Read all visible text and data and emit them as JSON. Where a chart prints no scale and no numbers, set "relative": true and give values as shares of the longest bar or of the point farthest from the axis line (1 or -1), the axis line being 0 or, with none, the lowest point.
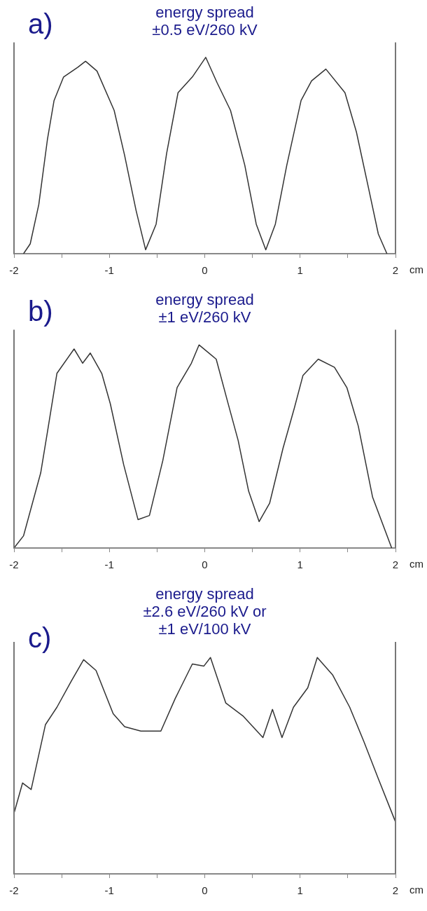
{
  "chart_data": [
    {
      "type": "line",
      "title": "energy spread\n±0.5 eV/260 kV",
      "annotations": [
        "a)"
      ],
      "xlabel": "cm",
      "relative": true,
      "legend": false,
      "grid": false,
      "marker": "none",
      "line_style": "solid",
      "xlim": [
        -2,
        2
      ],
      "xticks": [
        -2,
        {
          "value": -1.5,
          "label": null
        },
        -1,
        {
          "value": -0.5,
          "label": null
        },
        0,
        {
          "value": 0.5,
          "label": null
        },
        1,
        {
          "value": 1.5,
          "label": null
        },
        2
      ],
      "series": [
        {
          "color": "#333333",
          "x": [
            -1.9,
            -1.83,
            -1.74,
            -1.65,
            -1.58,
            -1.48,
            -1.33,
            -1.25,
            -1.13,
            -0.95,
            -0.84,
            -0.72,
            -0.62,
            -0.51,
            -0.4,
            -0.28,
            -0.13,
            0.01,
            0.13,
            0.27,
            0.42,
            0.54,
            0.64,
            0.74,
            0.86,
            1.01,
            1.12,
            1.27,
            1.47,
            1.59,
            1.71,
            1.82,
            1.91
          ],
          "values": [
            0,
            0.05,
            0.25,
            0.58,
            0.78,
            0.9,
            0.95,
            0.98,
            0.93,
            0.73,
            0.5,
            0.22,
            0.02,
            0.15,
            0.51,
            0.82,
            0.9,
            1,
            0.87,
            0.73,
            0.45,
            0.15,
            0.02,
            0.15,
            0.45,
            0.78,
            0.88,
            0.94,
            0.82,
            0.62,
            0.35,
            0.1,
            0
          ]
        }
      ]
    },
    {
      "type": "line",
      "title": "energy spread\n±1 eV/260 kV",
      "annotations": [
        "b)"
      ],
      "xlabel": "cm",
      "relative": true,
      "legend": false,
      "grid": false,
      "marker": "none",
      "line_style": "solid",
      "xlim": [
        -2,
        2
      ],
      "xticks": [
        -2,
        {
          "value": -1.5,
          "label": null
        },
        -1,
        {
          "value": -0.5,
          "label": null
        },
        0,
        {
          "value": 0.5,
          "label": null
        },
        1,
        {
          "value": 1.5,
          "label": null
        },
        2
      ],
      "series": [
        {
          "color": "#333333",
          "x": [
            -2,
            -1.9,
            -1.72,
            -1.65,
            -1.55,
            -1.37,
            -1.28,
            -1.2,
            -1.08,
            -0.99,
            -0.85,
            -0.7,
            -0.58,
            -0.44,
            -0.29,
            -0.14,
            -0.06,
            0.12,
            0.24,
            0.35,
            0.46,
            0.57,
            0.68,
            0.82,
            0.94,
            1.03,
            1.19,
            1.36,
            1.49,
            1.61,
            1.76,
            1.96
          ],
          "values": [
            0,
            0.06,
            0.37,
            0.57,
            0.86,
            0.98,
            0.91,
            0.96,
            0.86,
            0.71,
            0.41,
            0.14,
            0.16,
            0.43,
            0.79,
            0.91,
            1,
            0.93,
            0.72,
            0.53,
            0.28,
            0.13,
            0.22,
            0.49,
            0.69,
            0.85,
            0.93,
            0.89,
            0.79,
            0.6,
            0.25,
            0
          ]
        }
      ]
    },
    {
      "type": "line",
      "title": "energy spread\n±2.6 eV/260 kV or\n±1 eV/100 kV",
      "annotations": [
        "c)"
      ],
      "xlabel": "cm",
      "relative": true,
      "legend": false,
      "grid": false,
      "marker": "none",
      "line_style": "solid",
      "xlim": [
        -2,
        2
      ],
      "xticks": [
        -2,
        {
          "value": -1.5,
          "label": null
        },
        -1,
        {
          "value": -0.5,
          "label": null
        },
        0,
        {
          "value": 0.5,
          "label": null
        },
        1,
        {
          "value": 1.5,
          "label": null
        },
        2
      ],
      "series": [
        {
          "color": "#333333",
          "x": [
            -2,
            -1.91,
            -1.82,
            -1.67,
            -1.55,
            -1.4,
            -1.27,
            -1.14,
            -0.96,
            -0.84,
            -0.67,
            -0.46,
            -0.31,
            -0.13,
            -0.01,
            0.06,
            0.22,
            0.4,
            0.61,
            0.71,
            0.81,
            0.93,
            1.08,
            1.18,
            1.34,
            1.52,
            1.67,
            1.82,
            2
          ],
          "values": [
            0.28,
            0.42,
            0.39,
            0.69,
            0.77,
            0.89,
            0.99,
            0.94,
            0.74,
            0.68,
            0.66,
            0.66,
            0.81,
            0.97,
            0.96,
            1,
            0.79,
            0.73,
            0.63,
            0.76,
            0.63,
            0.77,
            0.86,
            1,
            0.92,
            0.77,
            0.61,
            0.44,
            0.24
          ]
        }
      ]
    }
  ]
}
